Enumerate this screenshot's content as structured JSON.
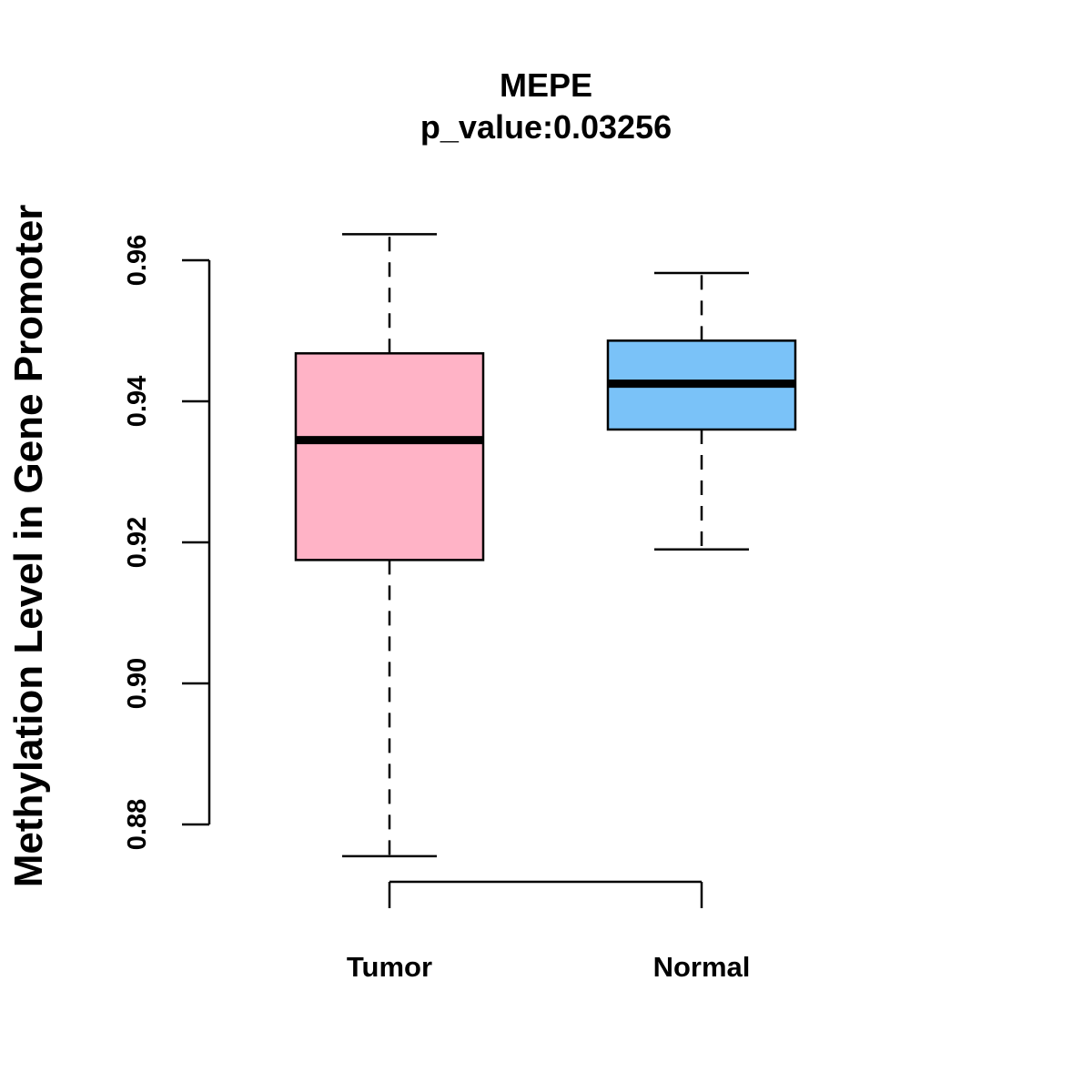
{
  "chart_data": {
    "type": "box",
    "title": "MEPE",
    "subtitle": "p_value:0.03256",
    "xlabel": "",
    "ylabel": "Methylation Level in Gene Promoter",
    "ylim": [
      0.88,
      0.96
    ],
    "yticks": [
      "0.88",
      "0.90",
      "0.92",
      "0.94",
      "0.96"
    ],
    "grid": false,
    "categories": [
      "Tumor",
      "Normal"
    ],
    "boxes": [
      {
        "name": "Tumor",
        "whisker_low": 0.8755,
        "q1": 0.9175,
        "median": 0.9345,
        "q3": 0.9468,
        "whisker_high": 0.9637,
        "color": "#FFB3C6"
      },
      {
        "name": "Normal",
        "whisker_low": 0.919,
        "q1": 0.936,
        "median": 0.9425,
        "q3": 0.9486,
        "whisker_high": 0.9582,
        "color": "#7AC2F8"
      }
    ]
  }
}
